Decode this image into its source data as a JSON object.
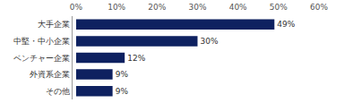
{
  "chart_data": {
    "type": "bar",
    "orientation": "horizontal",
    "categories": [
      "大手企業",
      "中堅・中小企業",
      "ベンチャー企業",
      "外資系企業",
      "その他"
    ],
    "values": [
      49,
      30,
      12,
      9,
      9
    ],
    "value_labels": [
      "49%",
      "30%",
      "12%",
      "9%",
      "9%"
    ],
    "data_labels": true,
    "color": "#0e2160",
    "xlim": [
      0,
      60
    ],
    "xticks": [
      {
        "value": 0,
        "label": "0%"
      },
      {
        "value": 10,
        "label": "10%"
      },
      {
        "value": 20,
        "label": "20%"
      },
      {
        "value": 30,
        "label": "30%"
      },
      {
        "value": 40,
        "label": "40%"
      },
      {
        "value": 50,
        "label": "50%"
      },
      {
        "value": 60,
        "label": "60%"
      }
    ],
    "grid": false
  }
}
